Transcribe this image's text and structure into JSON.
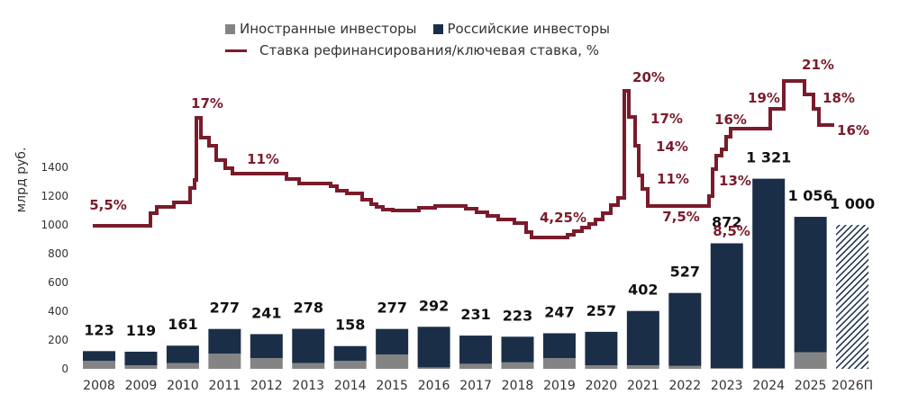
{
  "chart_data": {
    "type": "bar",
    "ylabel": "млрд руб.",
    "ylim": [
      0,
      1400
    ],
    "y_ticks": [
      0,
      200,
      400,
      600,
      800,
      1000,
      1200,
      1400
    ],
    "categories": [
      "2008",
      "2009",
      "2010",
      "2011",
      "2012",
      "2013",
      "2014",
      "2015",
      "2016",
      "2017",
      "2018",
      "2019",
      "2020",
      "2021",
      "2022",
      "2023",
      "2024",
      "2025",
      "2026П"
    ],
    "totals_labels": [
      "123",
      "119",
      "161",
      "277",
      "241",
      "278",
      "158",
      "277",
      "292",
      "231",
      "223",
      "247",
      "257",
      "402",
      "527",
      "872",
      "1 321",
      "1 056",
      "1 000"
    ],
    "series": [
      {
        "name": "Иностранные инвесторы",
        "color": "#848484",
        "values": [
          55,
          25,
          40,
          105,
          75,
          40,
          55,
          100,
          10,
          35,
          45,
          75,
          25,
          25,
          20,
          5,
          5,
          115,
          null
        ]
      },
      {
        "name": "Российские инвесторы",
        "color": "#1b2e47",
        "values": [
          68,
          94,
          121,
          172,
          166,
          238,
          103,
          177,
          282,
          196,
          178,
          172,
          232,
          377,
          507,
          867,
          1316,
          941,
          null
        ]
      }
    ],
    "forecast": {
      "category": "2026П",
      "value": 1000,
      "pattern": "hatched"
    },
    "rate_series": {
      "name": "Ставка рефинансирования/ключевая ставка, %",
      "color": "#7a1b2b",
      "labels": [
        {
          "text": "5,5%"
        },
        {
          "text": "17%"
        },
        {
          "text": "11%"
        },
        {
          "text": "4,25%"
        },
        {
          "text": "20%"
        },
        {
          "text": "17%"
        },
        {
          "text": "14%"
        },
        {
          "text": "11%"
        },
        {
          "text": "7,5%"
        },
        {
          "text": "8,5%"
        },
        {
          "text": "13%"
        },
        {
          "text": "16%"
        },
        {
          "text": "19%"
        },
        {
          "text": "21%"
        },
        {
          "text": "18%"
        },
        {
          "text": "16%"
        }
      ]
    }
  }
}
